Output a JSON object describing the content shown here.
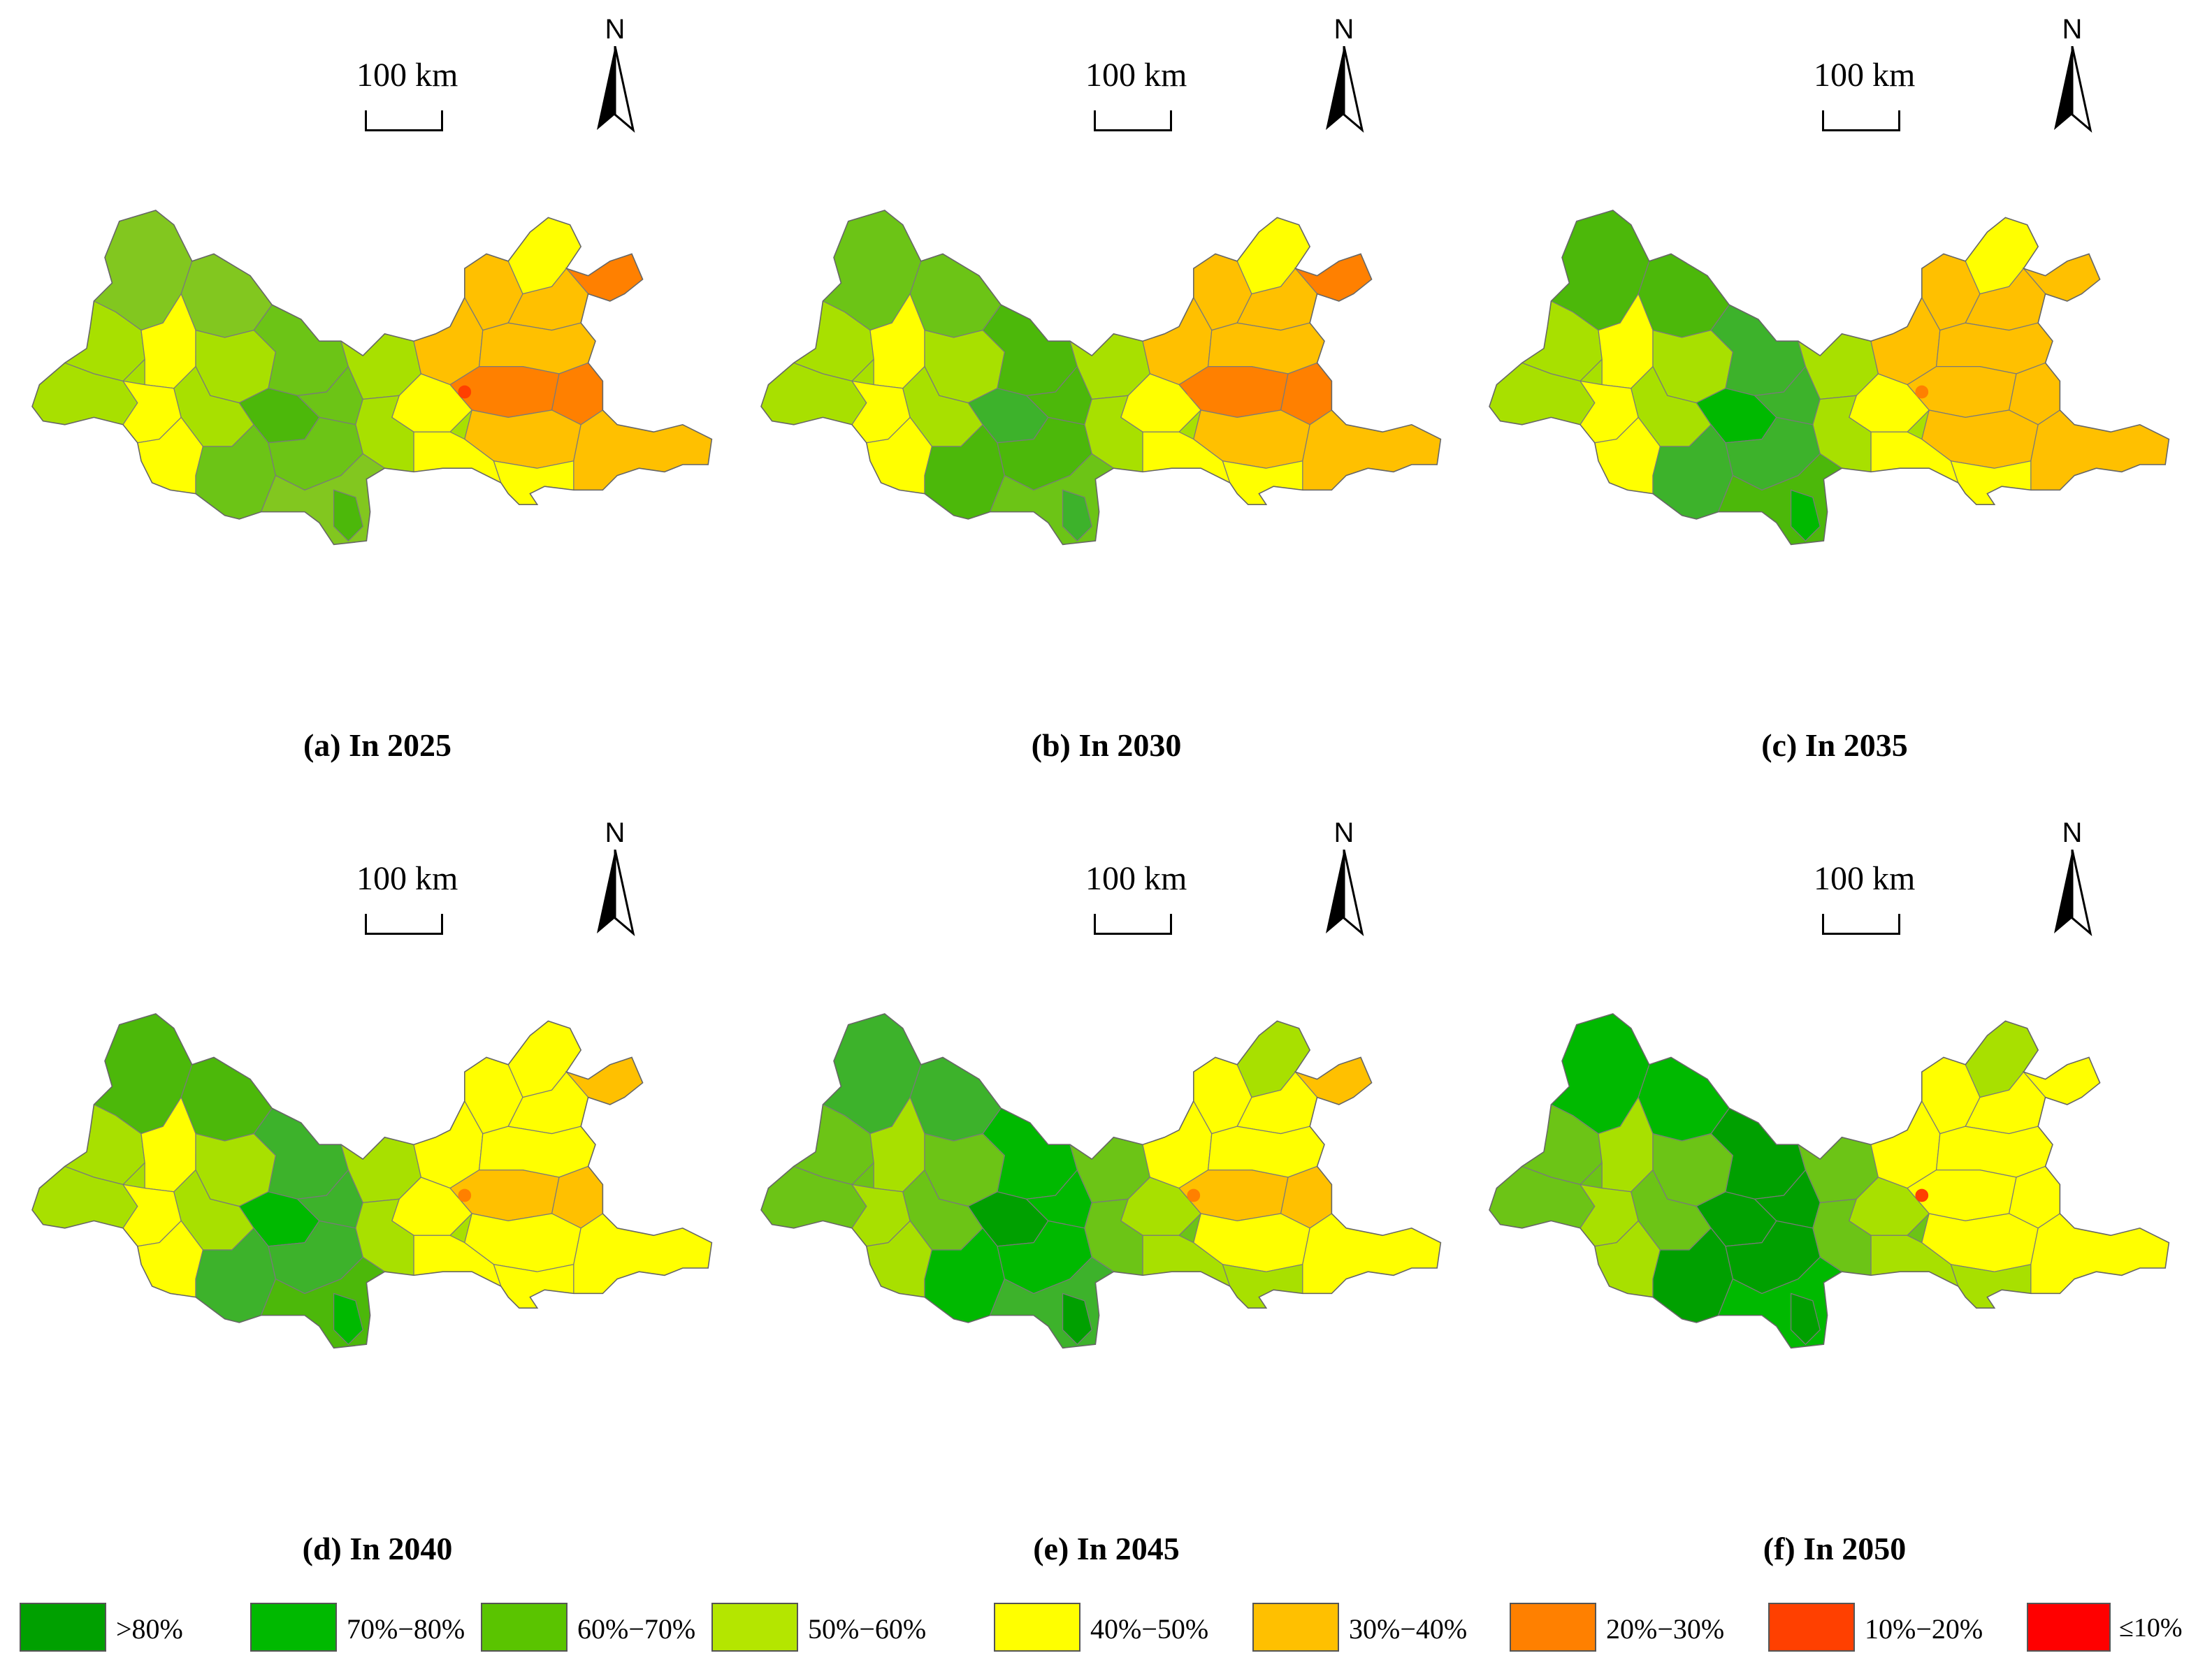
{
  "panels": [
    {
      "caption": "(a) In 2025",
      "scale_label": "100 km",
      "north_label": "N",
      "palette": [
        "#82c71f",
        "#6cc416",
        "#a8e000",
        "#ffff00",
        "#ffc000",
        "#ff8000",
        "#4cb80a"
      ]
    },
    {
      "caption": "(b) In 2030",
      "scale_label": "100 km",
      "north_label": "N",
      "palette": [
        "#6cc416",
        "#4cb80a",
        "#a8e000",
        "#ffff00",
        "#ffc000",
        "#ff8000",
        "#3db22b"
      ]
    },
    {
      "caption": "(c) In 2035",
      "scale_label": "100 km",
      "north_label": "N",
      "palette": [
        "#4cb80a",
        "#3db22b",
        "#a8e000",
        "#ffff00",
        "#ffc000",
        "#ffc000",
        "#00b900"
      ]
    },
    {
      "caption": "(d) In 2040",
      "scale_label": "100 km",
      "north_label": "N",
      "palette": [
        "#4cb80a",
        "#3db22b",
        "#a8e000",
        "#ffff00",
        "#ffff00",
        "#ffc000",
        "#00b900"
      ]
    },
    {
      "caption": "(e) In 2045",
      "scale_label": "100 km",
      "north_label": "N",
      "palette": [
        "#3db22b",
        "#00b900",
        "#6cc416",
        "#a8e000",
        "#ffff00",
        "#ffc000",
        "#00a000"
      ]
    },
    {
      "caption": "(f) In 2050",
      "scale_label": "100 km",
      "north_label": "N",
      "palette": [
        "#00b900",
        "#00a000",
        "#6cc416",
        "#a8e000",
        "#ffff00",
        "#ffff00",
        "#00a000"
      ]
    }
  ],
  "legend": [
    {
      "label": ">80%",
      "color": "#00a000"
    },
    {
      "label": "70%−80%",
      "color": "#00b900"
    },
    {
      "label": "60%−70%",
      "color": "#5ac400"
    },
    {
      "label": "50%−60%",
      "color": "#b4e600"
    },
    {
      "label": "40%−50%",
      "color": "#ffff00"
    },
    {
      "label": "30%−40%",
      "color": "#ffc000"
    },
    {
      "label": "20%−30%",
      "color": "#ff8000"
    },
    {
      "label": "10%−20%",
      "color": "#ff4000"
    },
    {
      "label": "≤10%",
      "color": "#ff0000"
    }
  ]
}
